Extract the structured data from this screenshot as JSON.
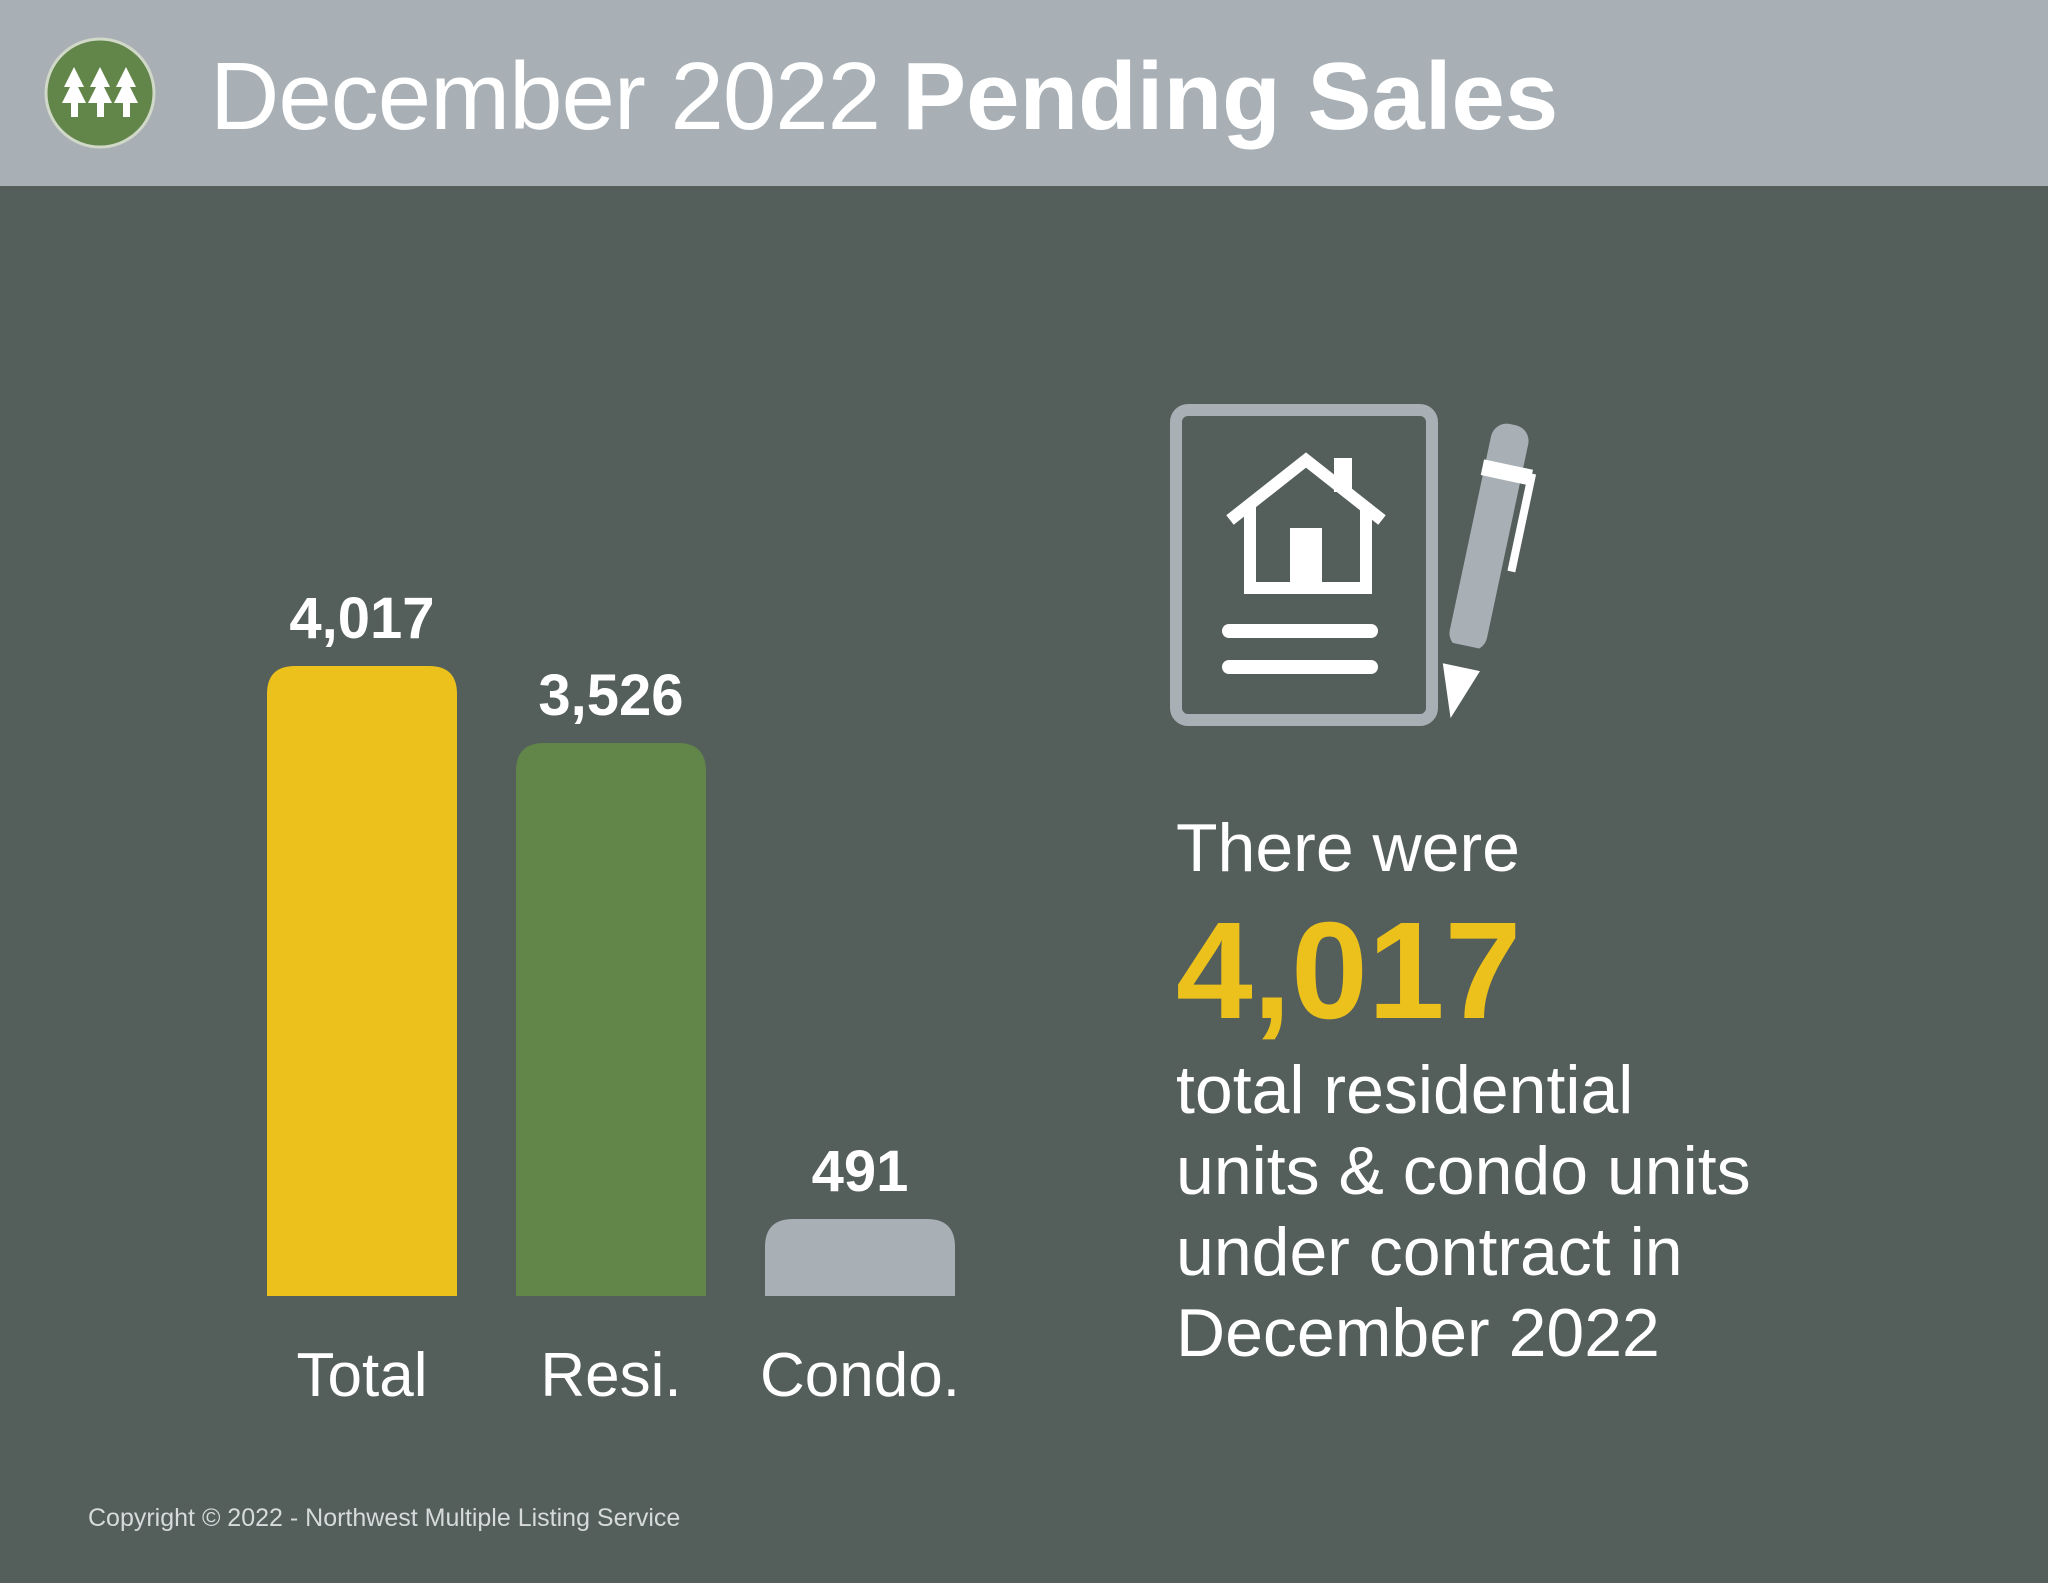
{
  "header": {
    "title_light": "December 2022",
    "title_bold": "Pending Sales"
  },
  "logo": {
    "icon": "trees-logo-icon",
    "color": "#62854a"
  },
  "chart_data": {
    "type": "bar",
    "categories": [
      "Total",
      "Resi.",
      "Condo."
    ],
    "values": [
      4017,
      3526,
      491
    ],
    "value_labels": [
      "4,017",
      "3,526",
      "491"
    ],
    "colors": [
      "#ecc11b",
      "#62854a",
      "#a8b0b5"
    ],
    "title": "",
    "xlabel": "",
    "ylabel": "",
    "ylim": [
      0,
      4017
    ],
    "grid": false,
    "legend": "none"
  },
  "summary": {
    "icon": "contract-house-pen-icon",
    "intro": "There were",
    "big_number": "4,017",
    "lines": [
      "total residential",
      "units & condo units",
      "under contract in",
      "December 2022"
    ]
  },
  "footer": {
    "copyright": "Copyright © 2022 - Northwest Multiple Listing Service"
  }
}
